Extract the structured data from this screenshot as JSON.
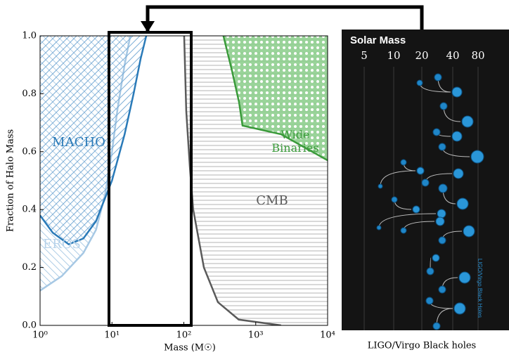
{
  "chart_data": {
    "type": "exclusion",
    "ylabel": "Fraction of Halo Mass",
    "xlabel": "Mass (M☉)",
    "xlog": true,
    "xlim": [
      1,
      10000
    ],
    "ylim": [
      0,
      1
    ],
    "xticks": [
      {
        "value": 1,
        "label": "10⁰"
      },
      {
        "value": 10,
        "label": "10¹"
      },
      {
        "value": 100,
        "label": "10²"
      },
      {
        "value": 1000,
        "label": "10³"
      },
      {
        "value": 10000,
        "label": "10⁴"
      }
    ],
    "yticks": [
      {
        "value": 0,
        "label": "0.0"
      },
      {
        "value": 0.2,
        "label": "0.2"
      },
      {
        "value": 0.4,
        "label": "0.4"
      },
      {
        "value": 0.6,
        "label": "0.6"
      },
      {
        "value": 0.8,
        "label": "0.8"
      },
      {
        "value": 1,
        "label": "1.0"
      }
    ],
    "series": [
      {
        "name": "EROS",
        "color": "#a6c8e4",
        "x": [
          1,
          2,
          4,
          6,
          8,
          10,
          12,
          15,
          18
        ],
        "values": [
          0.12,
          0.17,
          0.25,
          0.33,
          0.45,
          0.6,
          0.75,
          0.9,
          1.0
        ]
      },
      {
        "name": "MACHO",
        "color": "#2a7ab8",
        "x": [
          1,
          1.5,
          2.5,
          4,
          6,
          10,
          15,
          20,
          25,
          30
        ],
        "values": [
          0.38,
          0.32,
          0.28,
          0.3,
          0.36,
          0.5,
          0.66,
          0.8,
          0.92,
          1.0
        ]
      },
      {
        "name": "CMB",
        "color": "#5a5a5a",
        "x": [
          101,
          108,
          121,
          135,
          190,
          298,
          580,
          2250
        ],
        "values": [
          1.0,
          0.74,
          0.55,
          0.4,
          0.2,
          0.08,
          0.02,
          0.0
        ]
      },
      {
        "name": "Wide Binaries",
        "color": "#3a9a3a",
        "x": [
          355,
          467,
          587,
          655,
          2250,
          10000
        ],
        "values": [
          1.0,
          0.88,
          0.77,
          0.69,
          0.66,
          0.57
        ]
      }
    ]
  },
  "inset": {
    "title": "Solar Mass",
    "scale": [
      5,
      10,
      20,
      40,
      80
    ],
    "side_label": "LIGO/Virgo Black Holes",
    "caption": "LIGO/Virgo Black holes"
  }
}
